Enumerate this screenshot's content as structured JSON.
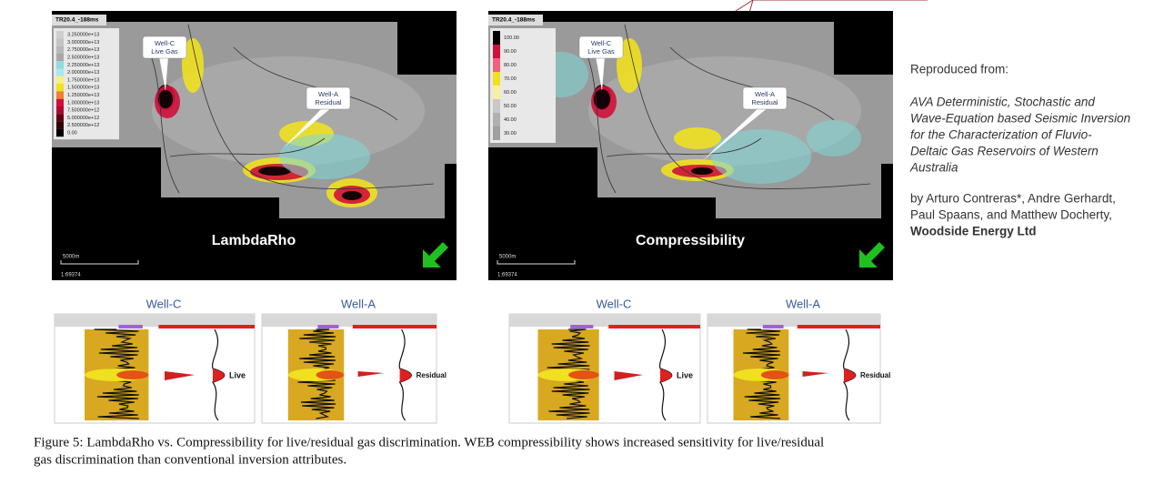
{
  "maps": [
    {
      "header": "TR20.4_-188ms",
      "legend": [
        "3.250000e+13",
        "3.000000e+13",
        "2.750000e+13",
        "2.500000e+13",
        "2.250000e+13",
        "2.000000e+13",
        "1.750000e+13",
        "1.500000e+13",
        "1.250000e+13",
        "1.000000e+13",
        "7.500000e+12",
        "5.000000e+12",
        "2.500000e+12",
        "0.00"
      ],
      "callouts": [
        {
          "line1": "Well-C",
          "line2": "Live Gas"
        },
        {
          "line1": "Well-A",
          "line2": "Residual"
        }
      ],
      "title": "LambdaRho",
      "scale": "5000m",
      "ratio": "1:69374"
    },
    {
      "header": "TR20.4_-188ms",
      "legend": [
        "100.00",
        "90.00",
        "80.00",
        "70.00",
        "60.00",
        "50.00",
        "40.00",
        "30.00"
      ],
      "callouts": [
        {
          "line1": "Well-C",
          "line2": "Live Gas"
        },
        {
          "line1": "Well-A",
          "line2": "Residual"
        }
      ],
      "title": "Compressibility",
      "scale": "5000m",
      "ratio": "1:69374"
    }
  ],
  "logs": [
    {
      "well": "Well-C",
      "label": "Live"
    },
    {
      "well": "Well-A",
      "label": "Residual"
    },
    {
      "well": "Well-C",
      "label": "Live"
    },
    {
      "well": "Well-A",
      "label": "Residual"
    }
  ],
  "attribution": {
    "intro": "Reproduced from:",
    "title": [
      "AVA Deterministic, Stochastic and",
      "Wave-Equation based Seismic Inversion",
      "for the Characterization of Fluvio-",
      "Deltaic Gas Reservoirs of Western",
      "Australia"
    ],
    "authors": [
      "by Arturo Contreras*, Andre Gerhardt,",
      "Paul Spaans, and Matthew Docherty,"
    ],
    "company": "Woodside Energy Ltd"
  },
  "caption": [
    "Figure 5: LambdaRho vs. Compressibility for live/residual gas discrimination. WEB compressibility shows increased sensitivity for live/residual",
    "gas discrimination than conventional inversion attributes."
  ]
}
